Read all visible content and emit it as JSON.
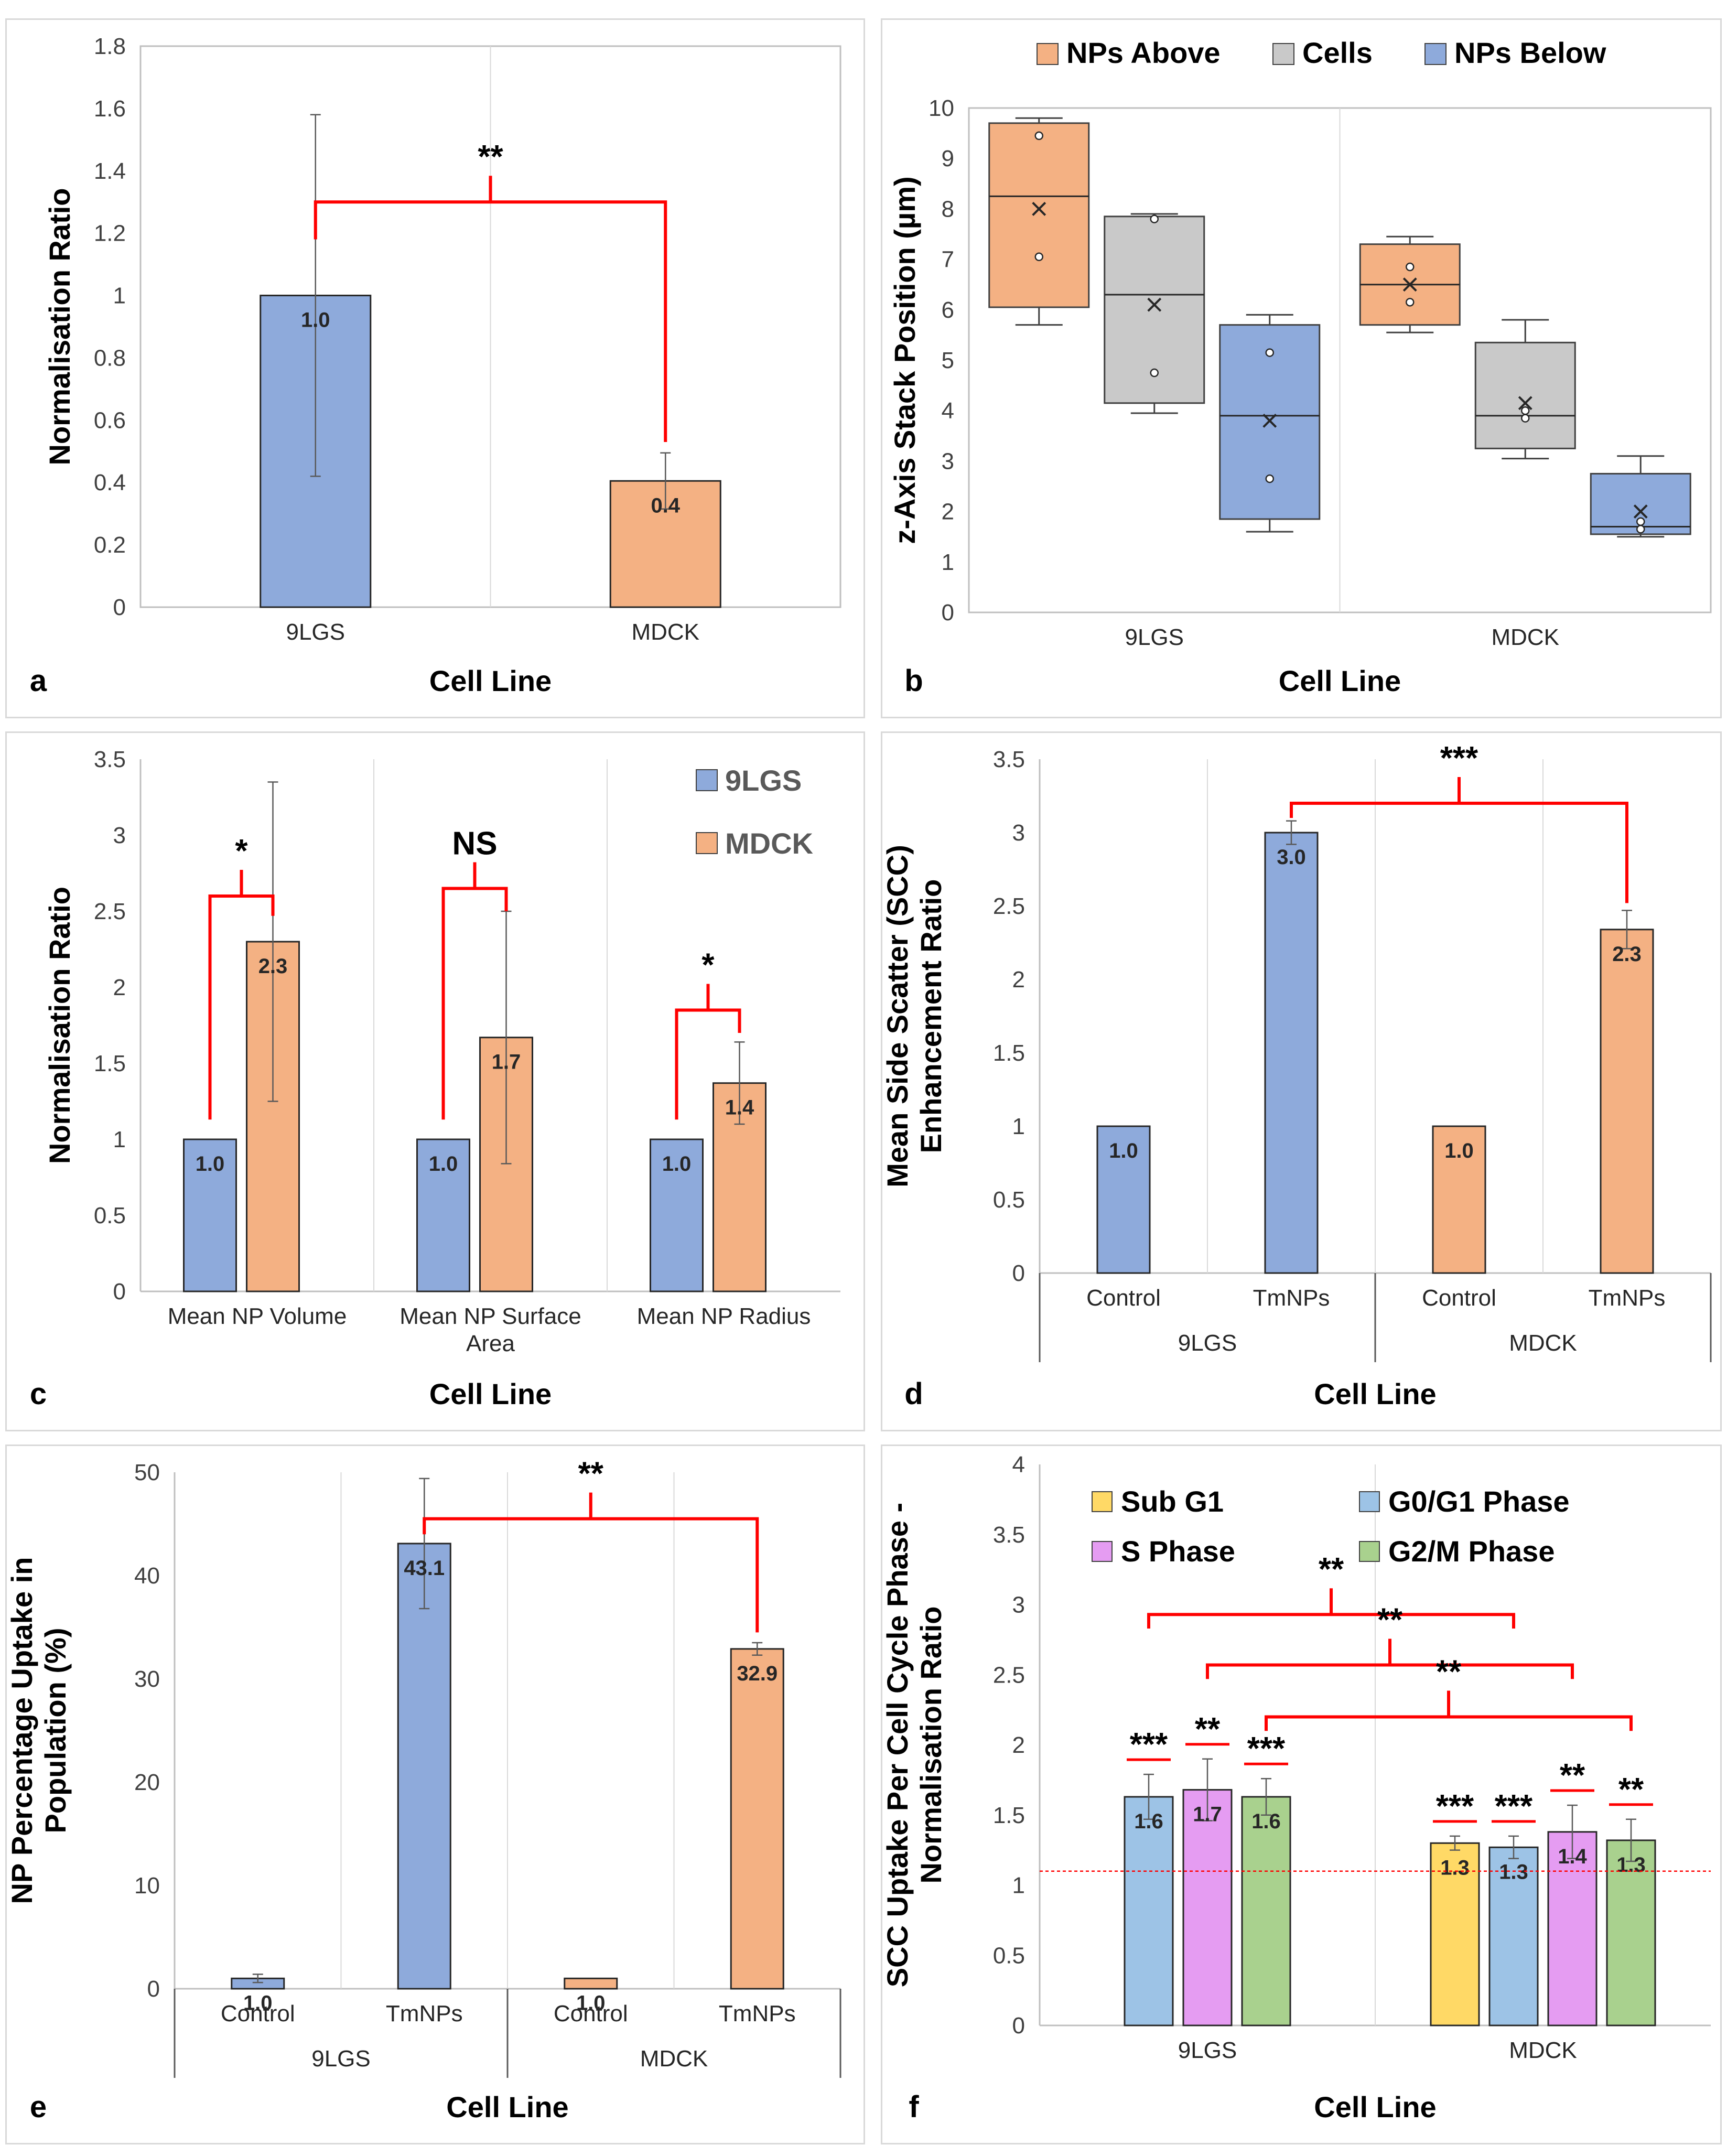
{
  "figure": {
    "panels": [
      {
        "id": "a",
        "letter": "a",
        "chart_data": {
          "type": "bar",
          "title": "",
          "xlabel": "Cell Line",
          "ylabel": [
            "Normalisation Ratio"
          ],
          "ylim": [
            0,
            1.8
          ],
          "yticks": [
            0,
            0.2,
            0.4,
            0.6,
            0.8,
            1,
            1.2,
            1.4,
            1.6,
            1.8
          ],
          "ytick_labels": [
            "0",
            "0.2",
            "0.4",
            "0.6",
            "0.8",
            "1",
            "1.2",
            "1.4",
            "1.6",
            "1.8"
          ],
          "groups": [
            {
              "label": "9LGS",
              "bars": [
                {
                  "value": 1.0,
                  "err": 0.58,
                  "label": "1.0",
                  "color": "#8eaadb"
                }
              ]
            },
            {
              "label": "MDCK",
              "bars": [
                {
                  "value": 0.405,
                  "err": 0.09,
                  "label": "0.4",
                  "color": "#f4b183"
                }
              ]
            }
          ],
          "brackets": [
            {
              "from": [
                0,
                0
              ],
              "to": [
                1,
                0
              ],
              "y": 1.3,
              "left_end": 1.18,
              "right_end": 0.53,
              "label": "**"
            }
          ]
        }
      },
      {
        "id": "b",
        "letter": "b",
        "chart_data": {
          "type": "box",
          "title": "",
          "xlabel": "Cell Line",
          "ylabel": [
            "z-Axis Stack Position (µm)"
          ],
          "ylim": [
            0,
            10
          ],
          "yticks": [
            0,
            1,
            2,
            3,
            4,
            5,
            6,
            7,
            8,
            9,
            10
          ],
          "legend": [
            {
              "label": "NPs Above",
              "color": "#f4b183"
            },
            {
              "label": "Cells",
              "color": "#c9c9c9"
            },
            {
              "label": "NPs Below",
              "color": "#8eaadb"
            }
          ],
          "groups": [
            {
              "label": "9LGS",
              "boxes": [
                {
                  "series": "NPs Above",
                  "min": 5.7,
                  "q1": 6.05,
                  "median": 8.25,
                  "q3": 9.7,
                  "max": 9.8,
                  "mean": 8.0,
                  "points": [
                    9.45,
                    7.05
                  ]
                },
                {
                  "series": "Cells",
                  "min": 3.95,
                  "q1": 4.15,
                  "median": 6.3,
                  "q3": 7.85,
                  "max": 7.9,
                  "mean": 6.1,
                  "points": [
                    7.8,
                    4.75
                  ]
                },
                {
                  "series": "NPs Below",
                  "min": 1.6,
                  "q1": 1.85,
                  "median": 3.9,
                  "q3": 5.7,
                  "max": 5.9,
                  "mean": 3.8,
                  "points": [
                    5.15,
                    2.65
                  ]
                }
              ]
            },
            {
              "label": "MDCK",
              "boxes": [
                {
                  "series": "NPs Above",
                  "min": 5.55,
                  "q1": 5.7,
                  "median": 6.5,
                  "q3": 7.3,
                  "max": 7.45,
                  "mean": 6.5,
                  "points": [
                    6.85,
                    6.15
                  ]
                },
                {
                  "series": "Cells",
                  "min": 3.05,
                  "q1": 3.25,
                  "median": 3.9,
                  "q3": 5.35,
                  "max": 5.8,
                  "mean": 4.15,
                  "points": [
                    4.0,
                    3.85
                  ]
                },
                {
                  "series": "NPs Below",
                  "min": 1.5,
                  "q1": 1.55,
                  "median": 1.7,
                  "q3": 2.75,
                  "max": 3.1,
                  "mean": 2.0,
                  "points": [
                    1.8,
                    1.65
                  ]
                }
              ]
            }
          ]
        }
      },
      {
        "id": "c",
        "letter": "c",
        "chart_data": {
          "type": "bar",
          "title": "",
          "xlabel": "Cell Line",
          "ylabel": [
            "Normalisation Ratio"
          ],
          "ylim": [
            0,
            3.5
          ],
          "yticks": [
            0,
            0.5,
            1,
            1.5,
            2,
            2.5,
            3,
            3.5
          ],
          "ytick_labels": [
            "0",
            "0.5",
            "1",
            "1.5",
            "2",
            "2.5",
            "3",
            "3.5"
          ],
          "legend": [
            {
              "label": "9LGS",
              "color": "#8eaadb"
            },
            {
              "label": "MDCK",
              "color": "#f4b183"
            }
          ],
          "groups": [
            {
              "label": [
                "Mean NP Volume"
              ],
              "bars": [
                {
                  "value": 1.0,
                  "err": 0,
                  "label": "1.0",
                  "color": "#8eaadb"
                },
                {
                  "value": 2.3,
                  "err": 1.05,
                  "label": "2.3",
                  "color": "#f4b183"
                }
              ]
            },
            {
              "label": [
                "Mean NP Surface",
                "Area"
              ],
              "bars": [
                {
                  "value": 1.0,
                  "err": 0,
                  "label": "1.0",
                  "color": "#8eaadb"
                },
                {
                  "value": 1.67,
                  "err": 0.83,
                  "label": "1.7",
                  "color": "#f4b183"
                }
              ]
            },
            {
              "label": [
                "Mean NP Radius"
              ],
              "bars": [
                {
                  "value": 1.0,
                  "err": 0,
                  "label": "1.0",
                  "color": "#8eaadb"
                },
                {
                  "value": 1.37,
                  "err": 0.27,
                  "label": "1.4",
                  "color": "#f4b183"
                }
              ]
            }
          ],
          "brackets": [
            {
              "from": [
                0,
                0
              ],
              "to": [
                0,
                1
              ],
              "y": 2.6,
              "left_end": 1.13,
              "right_end": 2.47,
              "label": "*"
            },
            {
              "from": [
                1,
                0
              ],
              "to": [
                1,
                1
              ],
              "y": 2.65,
              "left_end": 1.13,
              "right_end": 2.5,
              "label": "NS"
            },
            {
              "from": [
                2,
                0
              ],
              "to": [
                2,
                1
              ],
              "y": 1.85,
              "left_end": 1.13,
              "right_end": 1.7,
              "label": "*"
            }
          ]
        }
      },
      {
        "id": "d",
        "letter": "d",
        "chart_data": {
          "type": "bar",
          "title": "",
          "xlabel": "Cell Line",
          "ylabel": [
            "Mean Side Scatter (SCC)",
            "Enhancement Ratio"
          ],
          "ylim": [
            0,
            3.5
          ],
          "yticks": [
            0,
            0.5,
            1,
            1.5,
            2,
            2.5,
            3,
            3.5
          ],
          "ytick_labels": [
            "0",
            "0.5",
            "1",
            "1.5",
            "2",
            "2.5",
            "3",
            "3.5"
          ],
          "categories": [
            "Control",
            "TmNPs",
            "Control",
            "TmNPs"
          ],
          "super_groups": [
            "9LGS",
            "MDCK"
          ],
          "groups": [
            {
              "label": "Control",
              "bars": [
                {
                  "value": 1.0,
                  "err": 0,
                  "label": "1.0",
                  "color": "#8eaadb"
                }
              ]
            },
            {
              "label": "TmNPs",
              "bars": [
                {
                  "value": 3.0,
                  "err": 0.08,
                  "label": "3.0",
                  "color": "#8eaadb"
                }
              ]
            },
            {
              "label": "Control",
              "bars": [
                {
                  "value": 1.0,
                  "err": 0,
                  "label": "1.0",
                  "color": "#f4b183"
                }
              ]
            },
            {
              "label": "TmNPs",
              "bars": [
                {
                  "value": 2.34,
                  "err": 0.13,
                  "label": "2.3",
                  "color": "#f4b183"
                }
              ]
            }
          ],
          "brackets": [
            {
              "from": [
                1,
                0
              ],
              "to": [
                3,
                0
              ],
              "y": 3.2,
              "left_end": 3.1,
              "right_end": 2.52,
              "label": "***"
            }
          ]
        }
      },
      {
        "id": "e",
        "letter": "e",
        "chart_data": {
          "type": "bar",
          "title": "",
          "xlabel": "Cell Line",
          "ylabel": [
            "NP Percentage Uptake in",
            "Population (%)"
          ],
          "ylim": [
            0,
            50
          ],
          "yticks": [
            0,
            10,
            20,
            30,
            40,
            50
          ],
          "ytick_labels": [
            "0",
            "10",
            "20",
            "30",
            "40",
            "50"
          ],
          "categories": [
            "Control",
            "TmNPs",
            "Control",
            "TmNPs"
          ],
          "super_groups": [
            "9LGS",
            "MDCK"
          ],
          "groups": [
            {
              "label": "Control",
              "bars": [
                {
                  "value": 1.0,
                  "err": 0.4,
                  "label": "1.0",
                  "color": "#8eaadb"
                }
              ]
            },
            {
              "label": "TmNPs",
              "bars": [
                {
                  "value": 43.1,
                  "err": 6.3,
                  "label": "43.1",
                  "color": "#8eaadb"
                }
              ]
            },
            {
              "label": "Control",
              "bars": [
                {
                  "value": 1.0,
                  "err": 0,
                  "label": "1.0",
                  "color": "#f4b183"
                }
              ]
            },
            {
              "label": "TmNPs",
              "bars": [
                {
                  "value": 32.9,
                  "err": 0.6,
                  "label": "32.9",
                  "color": "#f4b183"
                }
              ]
            }
          ],
          "brackets": [
            {
              "from": [
                1,
                0
              ],
              "to": [
                3,
                0
              ],
              "y": 45.5,
              "left_end": 44.0,
              "right_end": 34.5,
              "label": "**"
            }
          ]
        }
      },
      {
        "id": "f",
        "letter": "f",
        "chart_data": {
          "type": "bar",
          "title": "",
          "xlabel": "Cell Line",
          "ylabel": [
            "SCC Uptake Per Cell Cycle Phase -",
            "Normalisation Ratio"
          ],
          "ylim": [
            0,
            4
          ],
          "yticks": [
            0,
            0.5,
            1,
            1.5,
            2,
            2.5,
            3,
            3.5,
            4
          ],
          "ytick_labels": [
            "0",
            "0.5",
            "1",
            "1.5",
            "2",
            "2.5",
            "3",
            "3.5",
            "4"
          ],
          "legend": [
            {
              "label": "Sub G1",
              "color": "#ffd966"
            },
            {
              "label": "G0/G1 Phase",
              "color": "#9dc3e6"
            },
            {
              "label": "S Phase",
              "color": "#e59cf2"
            },
            {
              "label": "G2/M Phase",
              "color": "#a9d18e"
            }
          ],
          "reference_line": 1.1,
          "groups": [
            {
              "label": "9LGS",
              "bars": [
                {
                  "series": "G0/G1 Phase",
                  "value": 1.63,
                  "err": 0.16,
                  "label": "1.6",
                  "color": "#9dc3e6",
                  "sig": "***"
                },
                {
                  "series": "S Phase",
                  "value": 1.68,
                  "err": 0.22,
                  "label": "1.7",
                  "color": "#e59cf2",
                  "sig": "**"
                },
                {
                  "series": "G2/M Phase",
                  "value": 1.63,
                  "err": 0.13,
                  "label": "1.6",
                  "color": "#a9d18e",
                  "sig": "***"
                }
              ]
            },
            {
              "label": "MDCK",
              "bars": [
                {
                  "series": "Sub G1",
                  "value": 1.3,
                  "err": 0.05,
                  "label": "1.3",
                  "color": "#ffd966",
                  "sig": "***"
                },
                {
                  "series": "G0/G1 Phase",
                  "value": 1.27,
                  "err": 0.08,
                  "label": "1.3",
                  "color": "#9dc3e6",
                  "sig": "***"
                },
                {
                  "series": "S Phase",
                  "value": 1.38,
                  "err": 0.19,
                  "label": "1.4",
                  "color": "#e59cf2",
                  "sig": "**"
                },
                {
                  "series": "G2/M Phase",
                  "value": 1.32,
                  "err": 0.15,
                  "label": "1.3",
                  "color": "#a9d18e",
                  "sig": "**"
                }
              ]
            }
          ],
          "brackets": [
            {
              "from": [
                0,
                0
              ],
              "to": [
                1,
                1
              ],
              "y": 2.93,
              "left_end": 2.83,
              "right_end": 2.83,
              "label": "**"
            },
            {
              "from": [
                0,
                1
              ],
              "to": [
                1,
                2
              ],
              "y": 2.57,
              "left_end": 2.47,
              "right_end": 2.47,
              "label": "**"
            },
            {
              "from": [
                0,
                2
              ],
              "to": [
                1,
                3
              ],
              "y": 2.2,
              "left_end": 2.1,
              "right_end": 2.1,
              "label": "**"
            }
          ]
        }
      }
    ]
  }
}
